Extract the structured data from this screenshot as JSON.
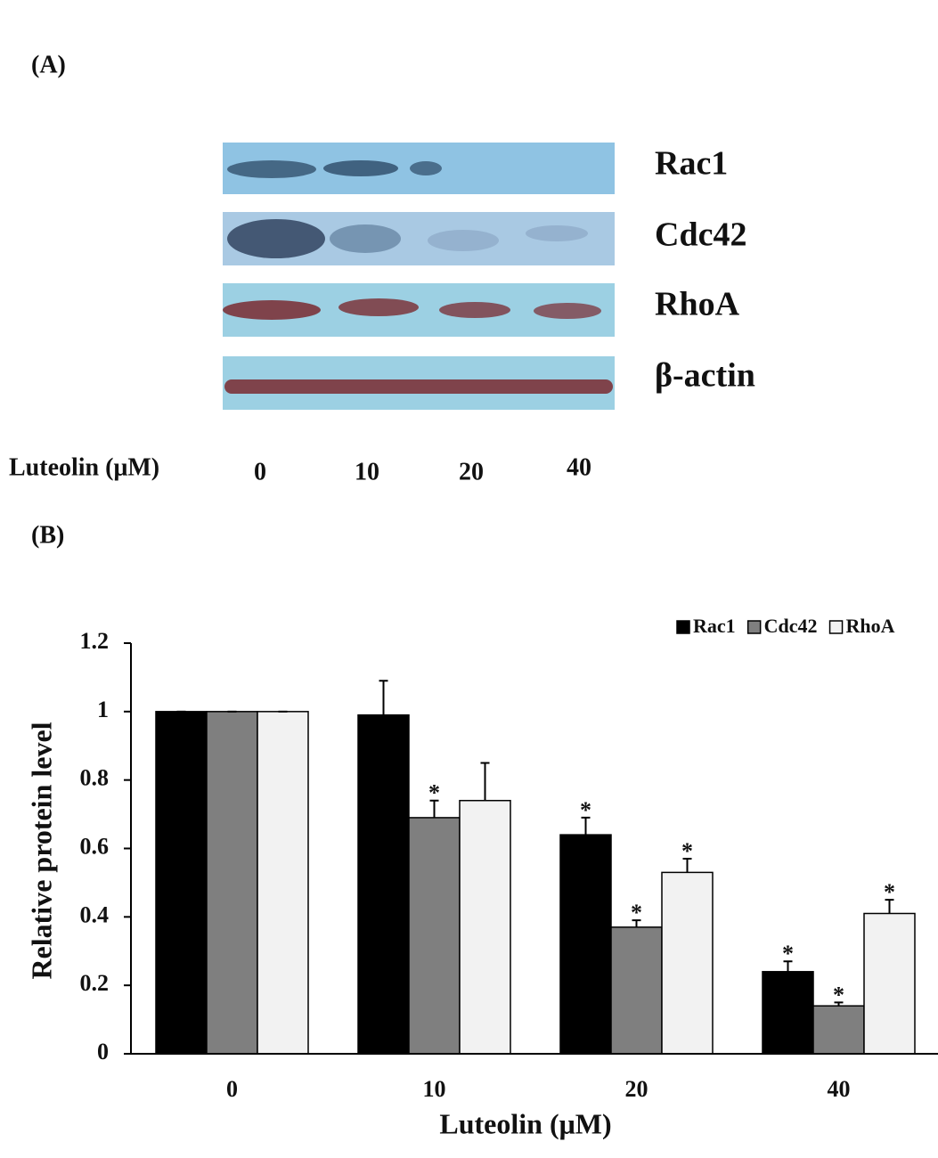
{
  "panel_a": {
    "label": "(A)",
    "bands": [
      "Rac1",
      "Cdc42",
      "RhoA",
      "β-actin"
    ],
    "x_label": "Luteolin (μM)",
    "lanes": [
      "0",
      "10",
      "20",
      "40"
    ]
  },
  "chart_data": {
    "type": "bar",
    "panel_label": "(B)",
    "x_label": "Luteolin (μM)",
    "y_label": "Relative protein level",
    "categories": [
      "0",
      "10",
      "20",
      "40"
    ],
    "series": [
      {
        "name": "Rac1",
        "color": "#000000",
        "values": [
          1,
          0.99,
          0.64,
          0.24
        ],
        "errors": [
          0,
          0.1,
          0.05,
          0.03
        ],
        "significance": [
          null,
          null,
          "*",
          "*"
        ]
      },
      {
        "name": "Cdc42",
        "color": "#7f7f7f",
        "values": [
          1,
          0.69,
          0.37,
          0.14
        ],
        "errors": [
          0,
          0.05,
          0.02,
          0.01
        ],
        "significance": [
          null,
          "*",
          "*",
          "*"
        ]
      },
      {
        "name": "RhoA",
        "color": "#f2f2f2",
        "values": [
          1,
          0.74,
          0.53,
          0.41
        ],
        "errors": [
          0,
          0.11,
          0.04,
          0.04
        ],
        "significance": [
          null,
          null,
          "*",
          "*"
        ]
      }
    ],
    "ylim": [
      0,
      1.2
    ],
    "yticks": [
      0,
      0.2,
      0.4,
      0.6,
      0.8,
      1,
      1.2
    ],
    "legend": "top-right"
  }
}
